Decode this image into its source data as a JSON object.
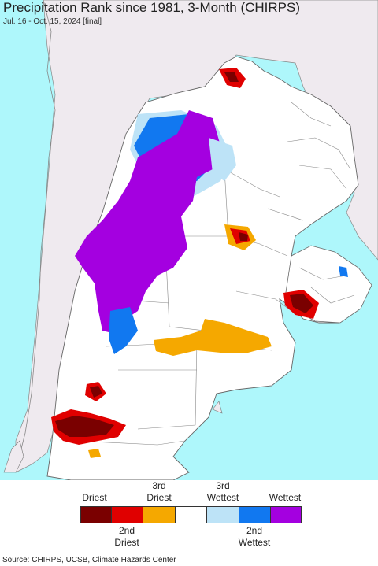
{
  "header": {
    "title": "Precipitation Rank since 1981, 3-Month (CHIRPS)",
    "subtitle": "Jul. 16 - Oct. 15, 2024 [final]"
  },
  "legend": {
    "labels_top": [
      "Driest",
      "3rd\nDriest",
      "3rd\nWettest",
      "Wettest"
    ],
    "labels_bottom": [
      "2nd\nDriest",
      "2nd\nWettest"
    ],
    "swatches": [
      {
        "name": "driest",
        "color": "#7a0000"
      },
      {
        "name": "2nd-driest",
        "color": "#e00000"
      },
      {
        "name": "3rd-driest",
        "color": "#f5a800"
      },
      {
        "name": "normal",
        "color": "#ffffff"
      },
      {
        "name": "3rd-wettest",
        "color": "#bde3f7"
      },
      {
        "name": "2nd-wettest",
        "color": "#1178f0"
      },
      {
        "name": "wettest",
        "color": "#a400e0"
      }
    ]
  },
  "source": "Source: CHIRPS, UCSB, Climate Hazards Center",
  "colors": {
    "ocean": "#aef7fb",
    "outside_land": "#efeaef",
    "land": "#ffffff",
    "border": "#777777"
  }
}
